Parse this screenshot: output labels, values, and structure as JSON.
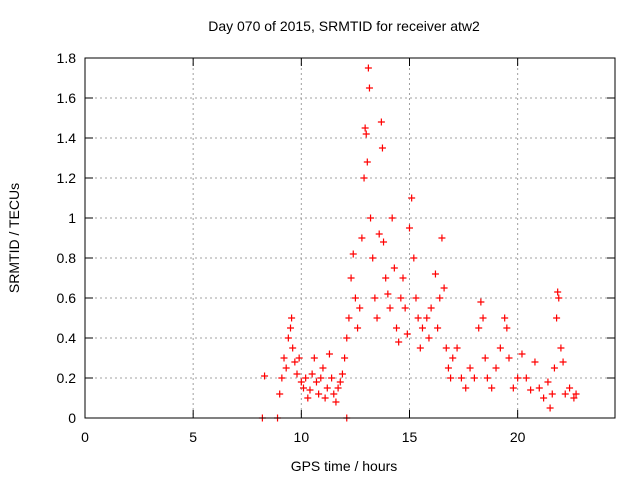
{
  "chart_data": {
    "type": "scatter",
    "title": "Day 070 of 2015, SRMTID for receiver atw2",
    "xlabel": "GPS time / hours",
    "ylabel": "SRMTID / TECUs",
    "xlim": [
      0,
      24.5
    ],
    "ylim": [
      0,
      1.8
    ],
    "xticks": [
      0,
      5,
      10,
      15,
      20
    ],
    "yticks": [
      0,
      0.2,
      0.4,
      0.6,
      0.8,
      1,
      1.2,
      1.4,
      1.6,
      1.8
    ],
    "xtick_labels": [
      "0",
      "5",
      "10",
      "15",
      "20"
    ],
    "ytick_labels": [
      "0",
      "0.2",
      "0.4",
      "0.6",
      "0.8",
      "1",
      "1.2",
      "1.4",
      "1.6",
      "1.8"
    ],
    "grid": true,
    "marker": "+",
    "color": "#ff0000",
    "series": [
      {
        "name": "atw2",
        "points": [
          [
            8.2,
            0.0
          ],
          [
            8.3,
            0.21
          ],
          [
            8.9,
            0.0
          ],
          [
            12.1,
            0.0
          ],
          [
            9.0,
            0.12
          ],
          [
            9.1,
            0.2
          ],
          [
            9.2,
            0.3
          ],
          [
            9.3,
            0.25
          ],
          [
            9.4,
            0.4
          ],
          [
            9.5,
            0.45
          ],
          [
            9.55,
            0.5
          ],
          [
            9.6,
            0.35
          ],
          [
            9.7,
            0.28
          ],
          [
            9.8,
            0.22
          ],
          [
            9.9,
            0.3
          ],
          [
            10.0,
            0.18
          ],
          [
            10.1,
            0.15
          ],
          [
            10.2,
            0.2
          ],
          [
            10.3,
            0.1
          ],
          [
            10.4,
            0.14
          ],
          [
            10.5,
            0.22
          ],
          [
            10.6,
            0.3
          ],
          [
            10.7,
            0.18
          ],
          [
            10.8,
            0.12
          ],
          [
            10.9,
            0.2
          ],
          [
            11.0,
            0.25
          ],
          [
            11.1,
            0.1
          ],
          [
            11.2,
            0.15
          ],
          [
            11.3,
            0.32
          ],
          [
            11.4,
            0.2
          ],
          [
            11.5,
            0.12
          ],
          [
            11.6,
            0.08
          ],
          [
            11.7,
            0.15
          ],
          [
            11.8,
            0.18
          ],
          [
            11.9,
            0.22
          ],
          [
            12.0,
            0.3
          ],
          [
            12.1,
            0.4
          ],
          [
            12.2,
            0.5
          ],
          [
            12.3,
            0.7
          ],
          [
            12.4,
            0.82
          ],
          [
            12.5,
            0.6
          ],
          [
            12.6,
            0.45
          ],
          [
            12.7,
            0.55
          ],
          [
            12.8,
            0.9
          ],
          [
            12.9,
            1.2
          ],
          [
            12.95,
            1.45
          ],
          [
            13.0,
            1.42
          ],
          [
            13.05,
            1.28
          ],
          [
            13.1,
            1.75
          ],
          [
            13.15,
            1.65
          ],
          [
            13.2,
            1.0
          ],
          [
            13.3,
            0.8
          ],
          [
            13.4,
            0.6
          ],
          [
            13.5,
            0.5
          ],
          [
            13.6,
            0.92
          ],
          [
            13.7,
            1.48
          ],
          [
            13.75,
            1.35
          ],
          [
            13.8,
            0.88
          ],
          [
            13.9,
            0.7
          ],
          [
            14.0,
            0.62
          ],
          [
            14.1,
            0.55
          ],
          [
            14.2,
            1.0
          ],
          [
            14.3,
            0.75
          ],
          [
            14.4,
            0.45
          ],
          [
            14.5,
            0.38
          ],
          [
            14.6,
            0.6
          ],
          [
            14.7,
            0.7
          ],
          [
            14.8,
            0.55
          ],
          [
            14.9,
            0.42
          ],
          [
            15.0,
            0.95
          ],
          [
            15.1,
            1.1
          ],
          [
            15.2,
            0.8
          ],
          [
            15.3,
            0.6
          ],
          [
            15.4,
            0.5
          ],
          [
            15.5,
            0.35
          ],
          [
            15.6,
            0.45
          ],
          [
            15.8,
            0.5
          ],
          [
            15.9,
            0.4
          ],
          [
            16.0,
            0.55
          ],
          [
            16.2,
            0.72
          ],
          [
            16.3,
            0.45
          ],
          [
            16.4,
            0.6
          ],
          [
            16.5,
            0.9
          ],
          [
            16.6,
            0.65
          ],
          [
            16.7,
            0.35
          ],
          [
            16.8,
            0.25
          ],
          [
            16.9,
            0.2
          ],
          [
            17.0,
            0.3
          ],
          [
            17.2,
            0.35
          ],
          [
            17.4,
            0.2
          ],
          [
            17.6,
            0.15
          ],
          [
            17.8,
            0.25
          ],
          [
            18.0,
            0.2
          ],
          [
            18.2,
            0.45
          ],
          [
            18.3,
            0.58
          ],
          [
            18.4,
            0.5
          ],
          [
            18.5,
            0.3
          ],
          [
            18.6,
            0.2
          ],
          [
            18.8,
            0.15
          ],
          [
            19.0,
            0.25
          ],
          [
            19.2,
            0.35
          ],
          [
            19.4,
            0.5
          ],
          [
            19.5,
            0.45
          ],
          [
            19.6,
            0.3
          ],
          [
            19.8,
            0.15
          ],
          [
            20.0,
            0.2
          ],
          [
            20.2,
            0.32
          ],
          [
            20.4,
            0.2
          ],
          [
            20.6,
            0.14
          ],
          [
            20.8,
            0.28
          ],
          [
            21.0,
            0.15
          ],
          [
            21.2,
            0.1
          ],
          [
            21.4,
            0.18
          ],
          [
            21.5,
            0.05
          ],
          [
            21.6,
            0.12
          ],
          [
            21.7,
            0.25
          ],
          [
            21.8,
            0.5
          ],
          [
            21.85,
            0.63
          ],
          [
            21.9,
            0.6
          ],
          [
            22.0,
            0.35
          ],
          [
            22.1,
            0.28
          ],
          [
            22.2,
            0.12
          ],
          [
            22.4,
            0.15
          ],
          [
            22.6,
            0.1
          ],
          [
            22.7,
            0.12
          ]
        ]
      }
    ]
  }
}
